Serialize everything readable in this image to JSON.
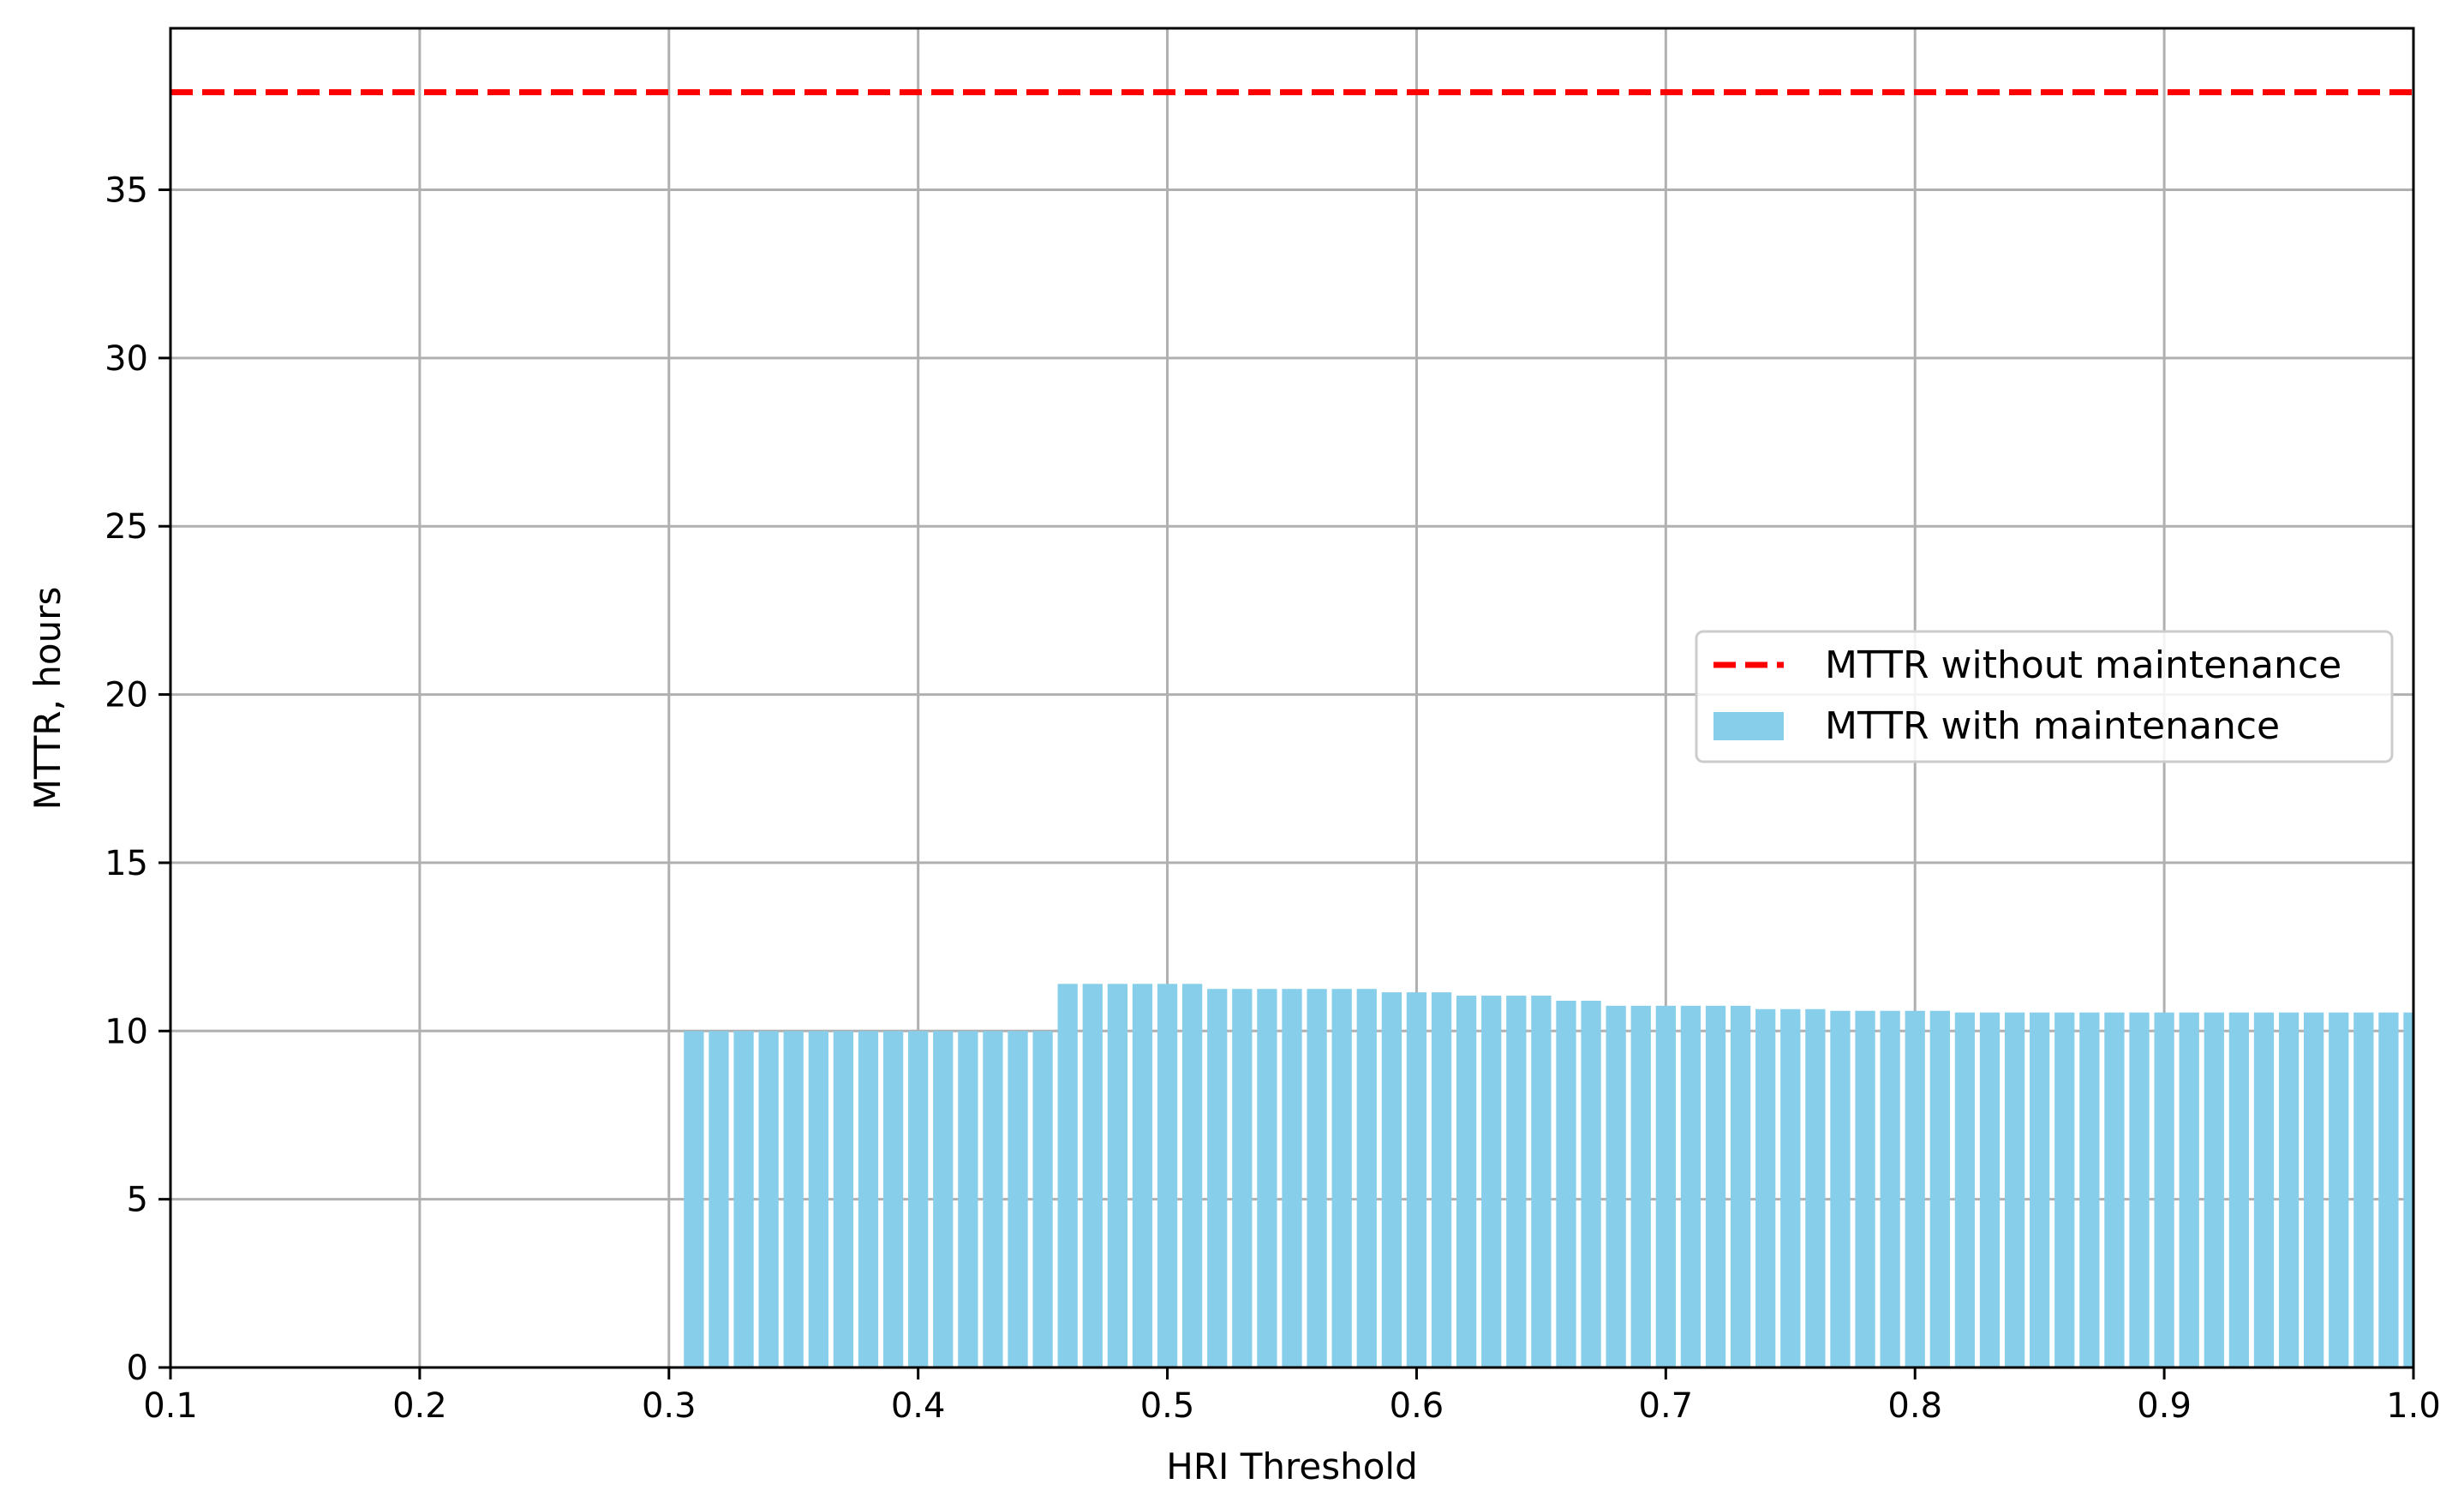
{
  "chart_data": {
    "type": "bar",
    "xlabel": "HRI Threshold",
    "ylabel": "MTTR, hours",
    "xlim": [
      0.1,
      1.0
    ],
    "ylim": [
      0,
      39.8
    ],
    "x_ticks": [
      "0.1",
      "0.2",
      "0.3",
      "0.4",
      "0.5",
      "0.6",
      "0.7",
      "0.8",
      "0.9",
      "1.0"
    ],
    "y_ticks": [
      "0",
      "5",
      "10",
      "15",
      "20",
      "25",
      "30",
      "35"
    ],
    "grid": true,
    "legend_position": "center-right",
    "reference_line": {
      "name": "MTTR without maintenance",
      "value": 37.9,
      "color": "#ff0000",
      "style": "dashed"
    },
    "bar_series": {
      "name": "MTTR with maintenance",
      "color": "#87ceeb",
      "x": [
        0.31,
        0.32,
        0.33,
        0.34,
        0.35,
        0.36,
        0.37,
        0.38,
        0.39,
        0.4,
        0.41,
        0.42,
        0.43,
        0.44,
        0.45,
        0.46,
        0.47,
        0.48,
        0.49,
        0.5,
        0.51,
        0.52,
        0.53,
        0.54,
        0.55,
        0.56,
        0.57,
        0.58,
        0.59,
        0.6,
        0.61,
        0.62,
        0.63,
        0.64,
        0.65,
        0.66,
        0.67,
        0.68,
        0.69,
        0.7,
        0.71,
        0.72,
        0.73,
        0.74,
        0.75,
        0.76,
        0.77,
        0.78,
        0.79,
        0.8,
        0.81,
        0.82,
        0.83,
        0.84,
        0.85,
        0.86,
        0.87,
        0.88,
        0.89,
        0.9,
        0.91,
        0.92,
        0.93,
        0.94,
        0.95,
        0.96,
        0.97,
        0.98,
        0.99,
        1.0
      ],
      "values": [
        10.0,
        10.0,
        10.0,
        10.0,
        10.0,
        10.0,
        10.0,
        10.0,
        10.0,
        10.0,
        10.0,
        10.0,
        10.0,
        10.0,
        10.0,
        11.4,
        11.4,
        11.4,
        11.4,
        11.4,
        11.4,
        11.25,
        11.25,
        11.25,
        11.25,
        11.25,
        11.25,
        11.25,
        11.15,
        11.15,
        11.15,
        11.05,
        11.05,
        11.05,
        11.05,
        10.9,
        10.9,
        10.75,
        10.75,
        10.75,
        10.75,
        10.75,
        10.75,
        10.65,
        10.65,
        10.65,
        10.6,
        10.6,
        10.6,
        10.6,
        10.6,
        10.55,
        10.55,
        10.55,
        10.55,
        10.55,
        10.55,
        10.55,
        10.55,
        10.55,
        10.55,
        10.55,
        10.55,
        10.55,
        10.55,
        10.55,
        10.55,
        10.55,
        10.55,
        10.55
      ]
    }
  }
}
